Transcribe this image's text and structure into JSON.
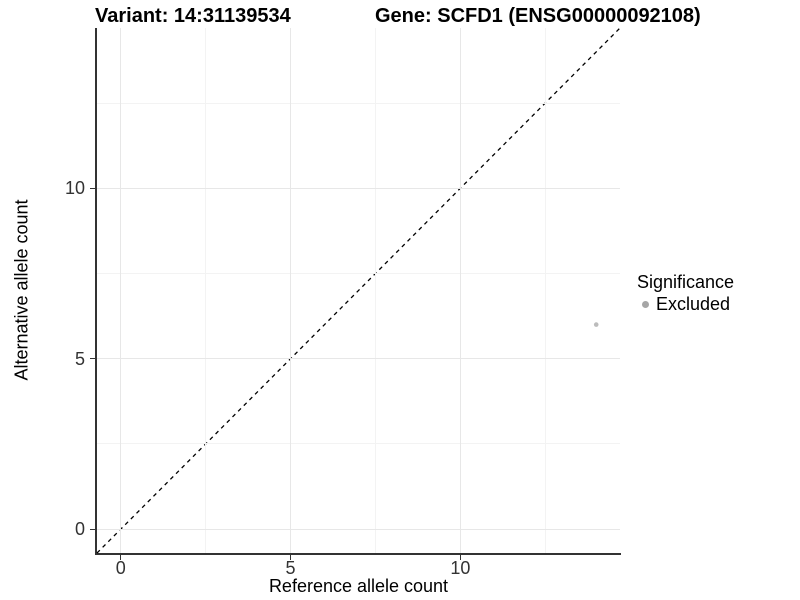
{
  "title": {
    "left": "Variant: 14:31139534",
    "right": "Gene: SCFD1 (ENSG00000092108)"
  },
  "chart_data": {
    "type": "scatter",
    "title": "Variant: 14:31139534   Gene: SCFD1 (ENSG00000092108)",
    "xlabel": "Reference allele count",
    "ylabel": "Alternative allele count",
    "xlim": [
      -0.7,
      14.7
    ],
    "ylim": [
      -0.7,
      14.7
    ],
    "xticks": [
      0,
      5,
      10
    ],
    "yticks": [
      0,
      5,
      10
    ],
    "minor_xticks": [
      2.5,
      7.5,
      12.5
    ],
    "minor_yticks": [
      2.5,
      7.5,
      12.5
    ],
    "grid": "major-and-minor",
    "legend_position": "right",
    "series": [
      {
        "name": "Excluded",
        "points": [
          {
            "x": 14,
            "y": 6
          }
        ],
        "color": "#bcbcbc",
        "point_radius": 2.3
      }
    ],
    "reference_line": {
      "type": "identity",
      "slope": 1,
      "intercept": 0,
      "linestyle": "dashed",
      "color": "#000000"
    }
  },
  "legend": {
    "title": "Significance",
    "items": [
      {
        "label": "Excluded",
        "color": "#a6a6a6"
      }
    ]
  },
  "colors": {
    "background": "#ffffff",
    "axis_line": "#333333",
    "tick_label": "#333333",
    "grid_major": "#e7e7e7",
    "grid_minor": "#f3f3f3",
    "point": "#bcbcbc",
    "legend_key": "#a6a6a6",
    "reference_line": "#000000"
  }
}
